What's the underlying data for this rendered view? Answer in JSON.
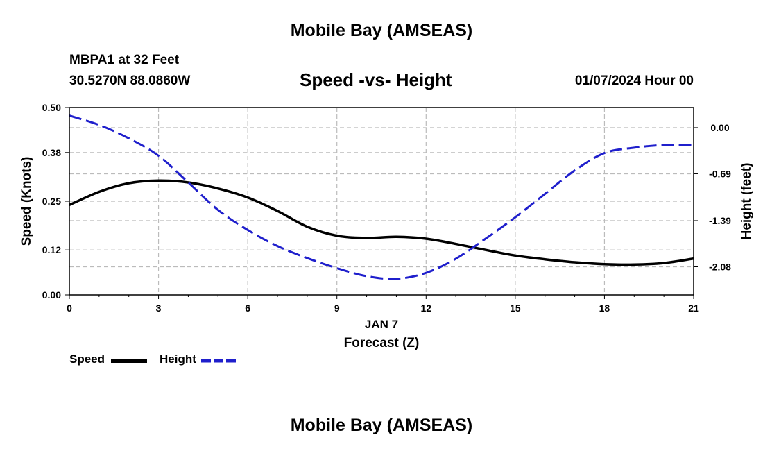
{
  "header": {
    "title": "Mobile Bay (AMSEAS)",
    "station": "MBPA1 at 32 Feet",
    "coords": "30.5270N  88.0860W",
    "date": "01/07/2024 Hour 00",
    "footer_title": "Mobile Bay (AMSEAS)"
  },
  "legend": {
    "speed_label": "Speed",
    "height_label": "Height"
  },
  "chart_data": {
    "type": "line",
    "title": "Speed -vs- Height",
    "xlabel": "Forecast (Z)",
    "xsublabel": "JAN 7",
    "ylabel": "Speed (Knots)",
    "y2label": "Height (feet)",
    "xlim": [
      0,
      21
    ],
    "ylim": [
      0,
      0.5
    ],
    "y2lim": [
      -2.5,
      0.3
    ],
    "x_ticks": [
      "0",
      "3",
      "6",
      "9",
      "12",
      "15",
      "18",
      "21"
    ],
    "y_ticks": [
      "0.00",
      "0.12",
      "0.25",
      "0.38",
      "0.50"
    ],
    "y2_ticks": [
      "0.00",
      "-0.69",
      "-1.39",
      "-2.08"
    ],
    "grid": true,
    "colors": {
      "speed": "#000000",
      "height": "#1f1fcc",
      "grid": "#bbbbbb"
    },
    "series": [
      {
        "name": "Speed",
        "axis": "left",
        "x": [
          0,
          1,
          2,
          3,
          4,
          5,
          6,
          7,
          8,
          9,
          10,
          11,
          12,
          13,
          14,
          15,
          16,
          17,
          18,
          19,
          20,
          21
        ],
        "values": [
          0.24,
          0.275,
          0.298,
          0.305,
          0.3,
          0.284,
          0.26,
          0.224,
          0.182,
          0.158,
          0.152,
          0.155,
          0.15,
          0.136,
          0.12,
          0.105,
          0.095,
          0.087,
          0.082,
          0.081,
          0.085,
          0.097
        ]
      },
      {
        "name": "Height",
        "axis": "right",
        "x": [
          0,
          1,
          2,
          3,
          4,
          5,
          6,
          7,
          8,
          9,
          10,
          11,
          12,
          13,
          14,
          15,
          16,
          17,
          18,
          19,
          20,
          21
        ],
        "values": [
          0.18,
          0.04,
          -0.16,
          -0.42,
          -0.82,
          -1.23,
          -1.53,
          -1.77,
          -1.95,
          -2.1,
          -2.22,
          -2.26,
          -2.17,
          -1.96,
          -1.66,
          -1.34,
          -0.99,
          -0.64,
          -0.38,
          -0.3,
          -0.26,
          -0.26
        ]
      }
    ]
  }
}
